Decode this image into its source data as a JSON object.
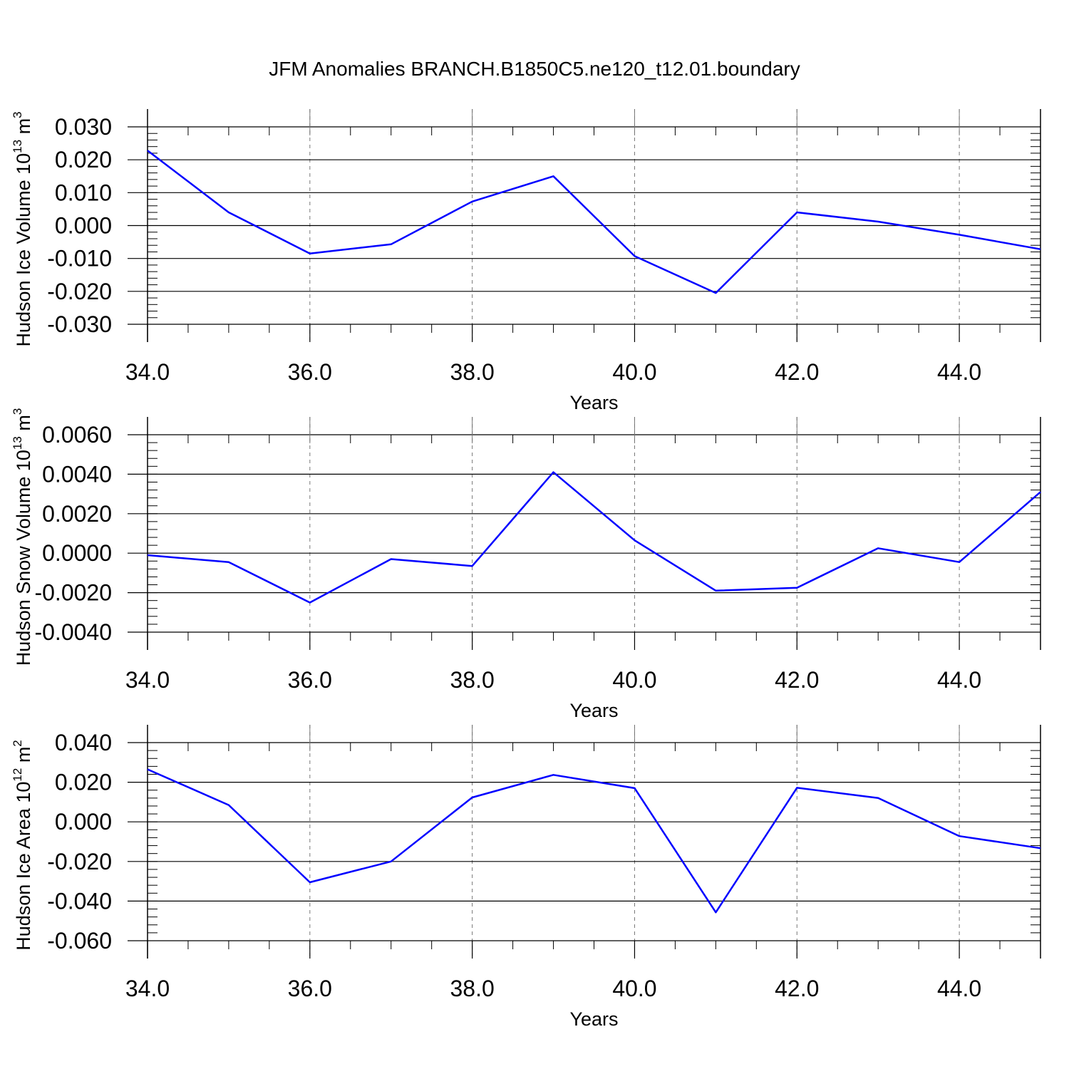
{
  "title": "JFM Anomalies BRANCH.B1850C5.ne120_t12.01.boundary",
  "colors": {
    "line": "#0000ff",
    "axis": "#000000",
    "grid": "#777777",
    "background": "#ffffff"
  },
  "chart_data": [
    {
      "type": "line",
      "ylabel": "Hudson Ice Volume 10",
      "ylabel_exp": "13",
      "ylabel_unit": " m",
      "ylabel_unit_exp": "3",
      "xlabel": "Years",
      "xlim": [
        34,
        45
      ],
      "ylim": [
        -0.03,
        0.03
      ],
      "yticks": [
        0.03,
        0.02,
        0.01,
        0.0,
        -0.01,
        -0.02,
        -0.03
      ],
      "ytick_labels": [
        "0.030",
        "0.020",
        "0.010",
        "0.000",
        "-0.010",
        "-0.020",
        "-0.030"
      ],
      "xticks": [
        34,
        36,
        38,
        40,
        42,
        44
      ],
      "xtick_labels": [
        "34.0",
        "36.0",
        "38.0",
        "40.0",
        "42.0",
        "44.0"
      ],
      "grid": "vertical-dashed",
      "series": [
        {
          "color": "#0000ff",
          "x": [
            34,
            35,
            36,
            37,
            38,
            39,
            40,
            41,
            42,
            43,
            44,
            45
          ],
          "y": [
            0.0228,
            0.004,
            -0.0085,
            -0.0057,
            0.0073,
            0.015,
            -0.0093,
            -0.0205,
            0.004,
            0.0012,
            -0.0028,
            -0.0072
          ]
        }
      ]
    },
    {
      "type": "line",
      "ylabel": "Hudson Snow Volume 10",
      "ylabel_exp": "13",
      "ylabel_unit": " m",
      "ylabel_unit_exp": "3",
      "xlabel": "Years",
      "xlim": [
        34,
        45
      ],
      "ylim": [
        -0.004,
        0.006
      ],
      "yticks": [
        0.006,
        0.004,
        0.002,
        0.0,
        -0.002,
        -0.004
      ],
      "ytick_labels": [
        "0.0060",
        "0.0040",
        "0.0020",
        "0.0000",
        "-0.0020",
        "-0.0040"
      ],
      "xticks": [
        34,
        36,
        38,
        40,
        42,
        44
      ],
      "xtick_labels": [
        "34.0",
        "36.0",
        "38.0",
        "40.0",
        "42.0",
        "44.0"
      ],
      "grid": "vertical-dashed",
      "series": [
        {
          "color": "#0000ff",
          "x": [
            34,
            35,
            36,
            37,
            38,
            39,
            40,
            41,
            42,
            43,
            44,
            45
          ],
          "y": [
            -0.0001,
            -0.00045,
            -0.0025,
            -0.0003,
            -0.00065,
            0.0041,
            0.00065,
            -0.0019,
            -0.00175,
            0.00025,
            -0.00045,
            0.0031
          ]
        }
      ]
    },
    {
      "type": "line",
      "ylabel": "Hudson Ice Area 10",
      "ylabel_exp": "12",
      "ylabel_unit": " m",
      "ylabel_unit_exp": "2",
      "xlabel": "Years",
      "xlim": [
        34,
        45
      ],
      "ylim": [
        -0.06,
        0.04
      ],
      "yticks": [
        0.04,
        0.02,
        0.0,
        -0.02,
        -0.04,
        -0.06
      ],
      "ytick_labels": [
        "0.040",
        "0.020",
        "0.000",
        "-0.020",
        "-0.040",
        "-0.060"
      ],
      "xticks": [
        34,
        36,
        38,
        40,
        42,
        44
      ],
      "xtick_labels": [
        "34.0",
        "36.0",
        "38.0",
        "40.0",
        "42.0",
        "44.0"
      ],
      "grid": "vertical-dashed",
      "series": [
        {
          "color": "#0000ff",
          "x": [
            34,
            35,
            36,
            37,
            38,
            39,
            40,
            41,
            42,
            43,
            44,
            45
          ],
          "y": [
            0.0265,
            0.0085,
            -0.0305,
            -0.02,
            0.0123,
            0.0237,
            0.017,
            -0.0457,
            0.0172,
            0.012,
            -0.0072,
            -0.0133
          ]
        }
      ]
    }
  ]
}
